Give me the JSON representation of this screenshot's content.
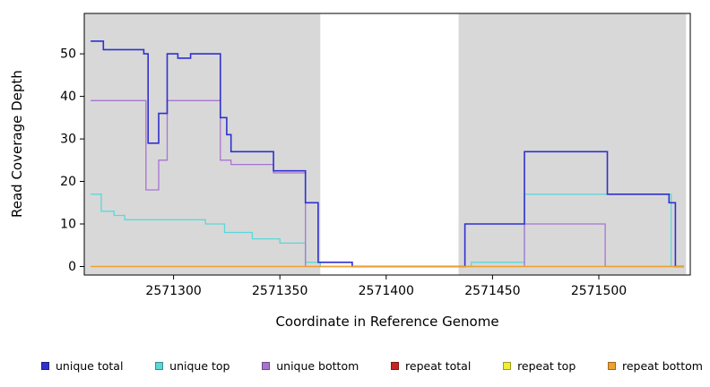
{
  "chart_data": {
    "type": "line",
    "subtype": "step",
    "title": "",
    "xlabel": "Coordinate in Reference Genome",
    "ylabel": "Read Coverage Depth",
    "x_ticks": [
      2571300,
      2571350,
      2571400,
      2571450,
      2571500
    ],
    "y_ticks": [
      0,
      10,
      20,
      30,
      40,
      50
    ],
    "x_range": [
      2571258,
      2571543
    ],
    "y_range": [
      -2,
      59.5
    ],
    "grid": false,
    "legend_position": "bottom",
    "panel_shade_color": "#d8d8d8",
    "background_color": "#ffffff",
    "shaded_regions": [
      {
        "x0": 2571258,
        "x1": 2571369
      },
      {
        "x0": 2571434,
        "x1": 2571541
      }
    ],
    "draw_order": [
      3,
      4,
      1,
      2,
      0,
      5
    ],
    "series": [
      {
        "name": "unique total",
        "color": "#3030cf",
        "points": [
          [
            2571261,
            53
          ],
          [
            2571267,
            51
          ],
          [
            2571286,
            50
          ],
          [
            2571288,
            29
          ],
          [
            2571293,
            36
          ],
          [
            2571297,
            50
          ],
          [
            2571302,
            49
          ],
          [
            2571308,
            50
          ],
          [
            2571322,
            35
          ],
          [
            2571325,
            31
          ],
          [
            2571327,
            27
          ],
          [
            2571347,
            22.5
          ],
          [
            2571362,
            15
          ],
          [
            2571368,
            1
          ],
          [
            2571384,
            0
          ],
          [
            2571437,
            10
          ],
          [
            2571465,
            27
          ],
          [
            2571504,
            17
          ],
          [
            2571533,
            15
          ],
          [
            2571536,
            0
          ],
          [
            2571540,
            0
          ]
        ]
      },
      {
        "name": "unique top",
        "color": "#5bd8d8",
        "points": [
          [
            2571261,
            17
          ],
          [
            2571266,
            13
          ],
          [
            2571272,
            12
          ],
          [
            2571277,
            11
          ],
          [
            2571315,
            10
          ],
          [
            2571324,
            8
          ],
          [
            2571337,
            6.5
          ],
          [
            2571350,
            5.5
          ],
          [
            2571362,
            1
          ],
          [
            2571369,
            0
          ],
          [
            2571440,
            1
          ],
          [
            2571465,
            17
          ],
          [
            2571534,
            0
          ],
          [
            2571540,
            0
          ]
        ]
      },
      {
        "name": "unique bottom",
        "color": "#a774d2",
        "points": [
          [
            2571261,
            39
          ],
          [
            2571287,
            18
          ],
          [
            2571293,
            25
          ],
          [
            2571297,
            39
          ],
          [
            2571322,
            25
          ],
          [
            2571327,
            24
          ],
          [
            2571347,
            22
          ],
          [
            2571362,
            0
          ],
          [
            2571465,
            10
          ],
          [
            2571503,
            0
          ],
          [
            2571540,
            0
          ]
        ]
      },
      {
        "name": "repeat total",
        "color": "#c62323",
        "points": [
          [
            2571261,
            0
          ],
          [
            2571540,
            0
          ]
        ]
      },
      {
        "name": "repeat top",
        "color": "#f2ee32",
        "points": [
          [
            2571261,
            0
          ],
          [
            2571540,
            0
          ]
        ]
      },
      {
        "name": "repeat bottom",
        "color": "#f0a030",
        "points": [
          [
            2571261,
            0
          ],
          [
            2571540,
            0
          ]
        ]
      }
    ]
  }
}
